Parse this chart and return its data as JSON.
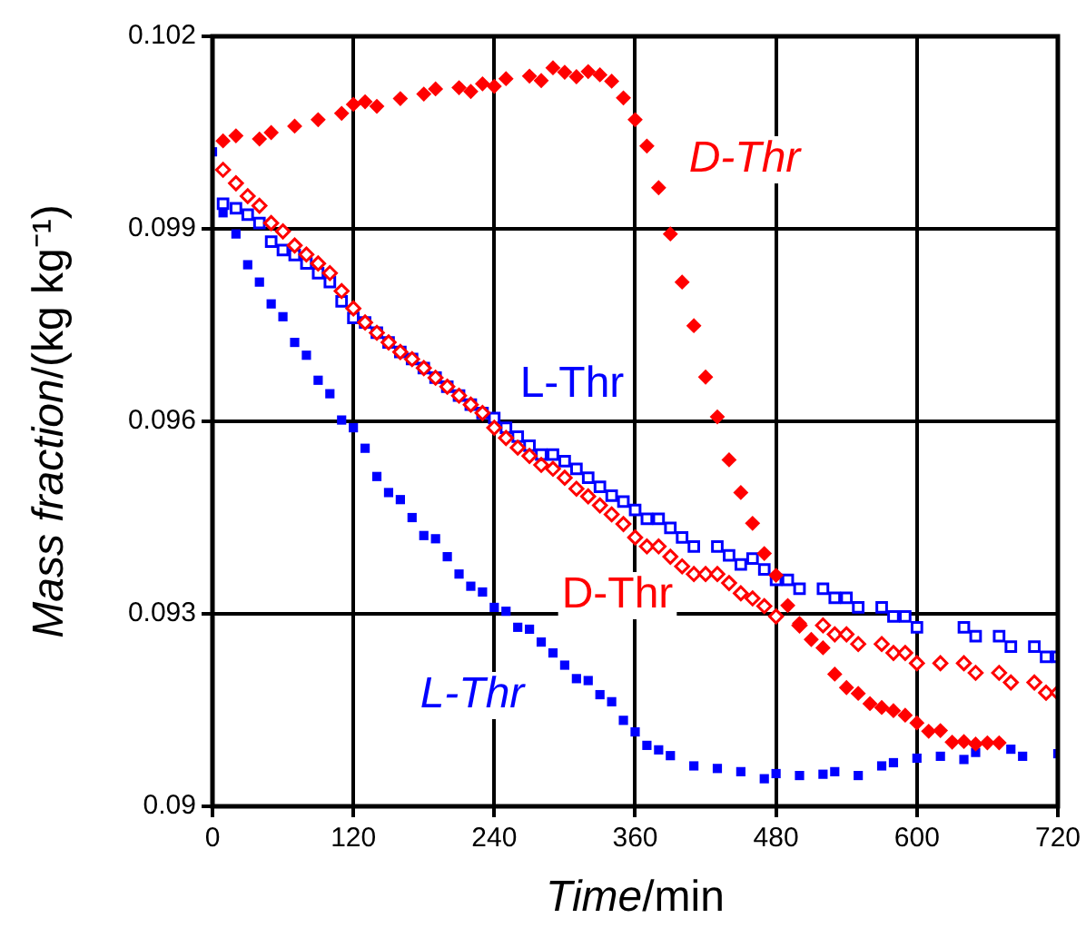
{
  "chart_data": {
    "type": "scatter",
    "xlabel": "Time/min",
    "ylabel": "Mass fraction/(kg kg⁻¹)",
    "xlim": [
      0,
      720
    ],
    "ylim": [
      0.09,
      0.102
    ],
    "xticks": [
      0,
      120,
      240,
      360,
      480,
      600,
      720
    ],
    "yticks": [
      0.09,
      0.093,
      0.096,
      0.099,
      0.102
    ],
    "grid": true,
    "legend": false,
    "series": [
      {
        "name": "D-Thr",
        "color": "#ff0000",
        "marker": "diamond",
        "x": [
          9,
          20,
          40,
          50,
          70,
          90,
          110,
          120,
          130,
          140,
          160,
          180,
          190,
          210,
          220,
          230,
          240,
          250,
          270,
          280,
          290,
          300,
          310,
          320,
          330,
          340,
          350,
          360,
          370,
          380,
          390,
          400,
          410,
          420,
          430,
          440,
          450,
          460,
          470,
          480,
          490,
          500,
          510,
          520,
          530,
          540,
          550,
          560,
          570,
          580,
          590,
          600,
          610,
          620,
          630,
          640,
          650,
          660,
          670
        ],
        "values": [
          0.10037,
          0.10045,
          0.1004,
          0.1005,
          0.1006,
          0.1007,
          0.1008,
          0.10094,
          0.10098,
          0.10091,
          0.10103,
          0.1011,
          0.10118,
          0.1012,
          0.10114,
          0.10126,
          0.10122,
          0.10134,
          0.10138,
          0.10131,
          0.10151,
          0.10144,
          0.10137,
          0.10145,
          0.1014,
          0.1013,
          0.10104,
          0.1007,
          0.10029,
          0.09964,
          0.09892,
          0.09817,
          0.09749,
          0.09669,
          0.09607,
          0.0954,
          0.09489,
          0.09441,
          0.09394,
          0.0936,
          0.09313,
          0.09285,
          0.0926,
          0.09247,
          0.09206,
          0.09185,
          0.09176,
          0.0916,
          0.09154,
          0.09149,
          0.09142,
          0.0913,
          0.09117,
          0.09118,
          0.091,
          0.09101,
          0.09097,
          0.09099,
          0.09099
        ]
      },
      {
        "name": "L-Thr",
        "color": "#0000ff",
        "marker": "square",
        "x": [
          0,
          9,
          20,
          30,
          40,
          50,
          60,
          70,
          80,
          90,
          100,
          110,
          120,
          130,
          140,
          150,
          160,
          170,
          180,
          190,
          200,
          210,
          220,
          230,
          240,
          250,
          260,
          270,
          280,
          290,
          300,
          310,
          320,
          330,
          340,
          350,
          360,
          370,
          380,
          390,
          410,
          430,
          450,
          470,
          480,
          500,
          520,
          530,
          550,
          570,
          580,
          600,
          620,
          640,
          650,
          680,
          690,
          720
        ],
        "values": [
          0.1002,
          0.09925,
          0.09892,
          0.09844,
          0.09817,
          0.09783,
          0.09763,
          0.09723,
          0.09703,
          0.09664,
          0.09643,
          0.09602,
          0.0959,
          0.09558,
          0.09514,
          0.09489,
          0.09478,
          0.0945,
          0.09422,
          0.09417,
          0.09389,
          0.09362,
          0.09343,
          0.09334,
          0.0931,
          0.09304,
          0.09279,
          0.09276,
          0.09256,
          0.09239,
          0.0922,
          0.09199,
          0.09196,
          0.09174,
          0.09163,
          0.09134,
          0.09116,
          0.09095,
          0.09088,
          0.09079,
          0.09063,
          0.09059,
          0.09054,
          0.09043,
          0.09051,
          0.09048,
          0.0905,
          0.09054,
          0.09048,
          0.09063,
          0.09068,
          0.09075,
          0.09078,
          0.09073,
          0.09084,
          0.09089,
          0.09078,
          0.09082
        ]
      },
      {
        "name": "D-Thr",
        "color": "#ff0000",
        "marker": "diamond",
        "x": [
          9,
          20,
          30,
          40,
          50,
          60,
          70,
          80,
          90,
          100,
          110,
          120,
          130,
          140,
          150,
          160,
          170,
          180,
          190,
          200,
          210,
          220,
          230,
          240,
          250,
          260,
          270,
          280,
          290,
          300,
          310,
          320,
          330,
          340,
          350,
          360,
          370,
          380,
          390,
          400,
          410,
          420,
          430,
          440,
          450,
          460,
          470,
          480,
          500,
          520,
          530,
          540,
          550,
          570,
          580,
          590,
          600,
          620,
          640,
          650,
          670,
          680,
          700,
          710,
          720
        ],
        "values": [
          0.09992,
          0.09971,
          0.09951,
          0.09936,
          0.09909,
          0.09896,
          0.09874,
          0.0986,
          0.09846,
          0.09831,
          0.09803,
          0.09776,
          0.09754,
          0.09738,
          0.09723,
          0.09708,
          0.09697,
          0.09683,
          0.09668,
          0.09654,
          0.0964,
          0.09626,
          0.09613,
          0.0959,
          0.09574,
          0.09559,
          0.09546,
          0.09532,
          0.09526,
          0.09512,
          0.09495,
          0.09483,
          0.09469,
          0.09455,
          0.0944,
          0.09419,
          0.09405,
          0.09405,
          0.09389,
          0.09374,
          0.09362,
          0.09362,
          0.09362,
          0.09348,
          0.09332,
          0.09324,
          0.09312,
          0.09296,
          0.09282,
          0.09282,
          0.09268,
          0.09268,
          0.09253,
          0.09253,
          0.09239,
          0.09239,
          0.09223,
          0.09223,
          0.09223,
          0.09208,
          0.09208,
          0.09193,
          0.09193,
          0.09177,
          0.09177
        ]
      },
      {
        "name": "L-Thr",
        "color": "#0000ff",
        "marker": "square",
        "x": [
          9,
          20,
          30,
          40,
          50,
          60,
          70,
          80,
          90,
          100,
          110,
          120,
          130,
          140,
          150,
          160,
          170,
          180,
          190,
          200,
          210,
          220,
          230,
          240,
          250,
          260,
          270,
          280,
          290,
          300,
          310,
          320,
          330,
          340,
          350,
          360,
          370,
          380,
          390,
          400,
          410,
          430,
          440,
          450,
          460,
          470,
          480,
          490,
          500,
          520,
          530,
          540,
          550,
          570,
          580,
          590,
          600,
          640,
          650,
          670,
          680,
          700,
          710,
          720
        ],
        "values": [
          0.09939,
          0.09932,
          0.09922,
          0.09909,
          0.0988,
          0.09867,
          0.09859,
          0.09846,
          0.09831,
          0.09817,
          0.09787,
          0.09761,
          0.09754,
          0.09738,
          0.09723,
          0.09708,
          0.09697,
          0.09683,
          0.09668,
          0.09654,
          0.0964,
          0.09626,
          0.09613,
          0.09605,
          0.0959,
          0.09576,
          0.09562,
          0.09548,
          0.09548,
          0.09538,
          0.09526,
          0.09512,
          0.09498,
          0.09484,
          0.09475,
          0.09462,
          0.09448,
          0.09448,
          0.09434,
          0.09419,
          0.09405,
          0.09405,
          0.09391,
          0.09377,
          0.09386,
          0.09369,
          0.09353,
          0.09353,
          0.09339,
          0.09339,
          0.09325,
          0.09325,
          0.0931,
          0.0931,
          0.09296,
          0.09296,
          0.09279,
          0.09279,
          0.09265,
          0.09265,
          0.09249,
          0.09249,
          0.09233,
          0.09233
        ]
      }
    ]
  }
}
